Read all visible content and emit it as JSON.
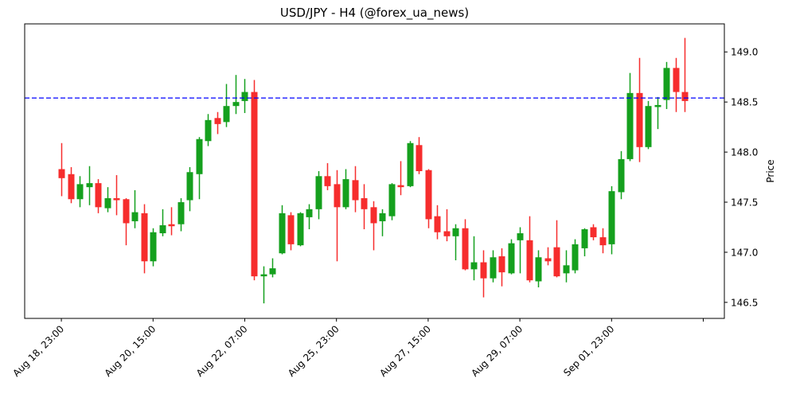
{
  "colors": {
    "up": "#15a01e",
    "down": "#f62d2d",
    "hline": "#0000ff",
    "axis": "#000000",
    "text": "#000000",
    "background": "#ffffff"
  },
  "chart_data": {
    "type": "candlestick",
    "title": "USD/JPY - H4 (@forex_ua_news)",
    "ylabel": "Price",
    "xlabel": "",
    "grid": false,
    "legend": null,
    "ylim": [
      146.34,
      149.28
    ],
    "y_ticks": [
      146.5,
      147.0,
      147.5,
      148.0,
      148.5,
      149.0
    ],
    "x_index_range": [
      -4,
      72.3
    ],
    "x_tick_indices": [
      0,
      10,
      20,
      30,
      40,
      50,
      60,
      70
    ],
    "x_tick_labels": [
      "Aug 18, 23:00",
      "Aug 20, 15:00",
      "Aug 22, 07:00",
      "Aug 25, 23:00",
      "Aug 27, 15:00",
      "Aug 29, 07:00",
      "Sep 01, 23:00",
      ""
    ],
    "hline": {
      "value": 148.54,
      "style": "dashed",
      "color": "#0000ff"
    },
    "ohlc": [
      [
        147.83,
        148.09,
        147.56,
        147.74
      ],
      [
        147.78,
        147.85,
        147.49,
        147.53
      ],
      [
        147.53,
        147.76,
        147.45,
        147.68
      ],
      [
        147.65,
        147.86,
        147.47,
        147.69
      ],
      [
        147.69,
        147.73,
        147.39,
        147.45
      ],
      [
        147.44,
        147.65,
        147.4,
        147.54
      ],
      [
        147.54,
        147.77,
        147.37,
        147.52
      ],
      [
        147.53,
        147.54,
        147.07,
        147.29
      ],
      [
        147.31,
        147.62,
        147.24,
        147.4
      ],
      [
        147.39,
        147.48,
        146.79,
        146.91
      ],
      [
        146.91,
        147.24,
        146.86,
        147.2
      ],
      [
        147.19,
        147.43,
        147.16,
        147.27
      ],
      [
        147.28,
        147.45,
        147.17,
        147.26
      ],
      [
        147.28,
        147.54,
        147.21,
        147.5
      ],
      [
        147.52,
        147.85,
        147.41,
        147.8
      ],
      [
        147.78,
        148.15,
        147.53,
        148.13
      ],
      [
        148.11,
        148.38,
        148.06,
        148.32
      ],
      [
        148.34,
        148.4,
        148.18,
        148.28
      ],
      [
        148.3,
        148.68,
        148.25,
        148.46
      ],
      [
        148.46,
        148.77,
        148.38,
        148.5
      ],
      [
        148.51,
        148.73,
        148.39,
        148.6
      ],
      [
        148.6,
        148.72,
        146.72,
        146.76
      ],
      [
        146.76,
        146.86,
        146.49,
        146.78
      ],
      [
        146.78,
        146.94,
        146.75,
        146.84
      ],
      [
        146.99,
        147.47,
        146.98,
        147.39
      ],
      [
        147.37,
        147.4,
        147.02,
        147.08
      ],
      [
        147.07,
        147.4,
        147.06,
        147.39
      ],
      [
        147.35,
        147.48,
        147.23,
        147.43
      ],
      [
        147.43,
        147.81,
        147.33,
        147.76
      ],
      [
        147.76,
        147.89,
        147.62,
        147.66
      ],
      [
        147.68,
        147.82,
        146.91,
        147.45
      ],
      [
        147.45,
        147.83,
        147.43,
        147.73
      ],
      [
        147.72,
        147.86,
        147.4,
        147.52
      ],
      [
        147.54,
        147.68,
        147.23,
        147.43
      ],
      [
        147.45,
        147.51,
        147.02,
        147.29
      ],
      [
        147.31,
        147.43,
        147.16,
        147.39
      ],
      [
        147.36,
        147.69,
        147.32,
        147.68
      ],
      [
        147.67,
        147.91,
        147.57,
        147.65
      ],
      [
        147.66,
        148.11,
        147.65,
        148.09
      ],
      [
        148.07,
        148.15,
        147.78,
        147.81
      ],
      [
        147.82,
        147.83,
        147.24,
        147.33
      ],
      [
        147.36,
        147.47,
        147.13,
        147.2
      ],
      [
        147.21,
        147.43,
        147.11,
        147.16
      ],
      [
        147.16,
        147.28,
        146.92,
        147.24
      ],
      [
        147.24,
        147.33,
        146.82,
        146.83
      ],
      [
        146.83,
        147.16,
        146.72,
        146.9
      ],
      [
        146.9,
        147.02,
        146.55,
        146.74
      ],
      [
        146.74,
        147.02,
        146.7,
        146.95
      ],
      [
        146.96,
        147.04,
        146.66,
        146.8
      ],
      [
        146.79,
        147.13,
        146.78,
        147.09
      ],
      [
        147.12,
        147.25,
        146.79,
        147.19
      ],
      [
        147.12,
        147.36,
        146.7,
        146.72
      ],
      [
        146.71,
        147.02,
        146.65,
        146.95
      ],
      [
        146.94,
        147.05,
        146.87,
        146.91
      ],
      [
        147.05,
        147.32,
        146.75,
        146.76
      ],
      [
        146.79,
        147.02,
        146.7,
        146.87
      ],
      [
        146.82,
        147.13,
        146.79,
        147.08
      ],
      [
        147.04,
        147.24,
        146.96,
        147.23
      ],
      [
        147.25,
        147.28,
        147.12,
        147.15
      ],
      [
        147.15,
        147.24,
        146.99,
        147.07
      ],
      [
        147.08,
        147.66,
        146.98,
        147.61
      ],
      [
        147.6,
        148.01,
        147.53,
        147.93
      ],
      [
        147.93,
        148.79,
        147.91,
        148.59
      ],
      [
        148.59,
        148.94,
        147.9,
        148.05
      ],
      [
        148.05,
        148.51,
        148.03,
        148.46
      ],
      [
        148.45,
        148.55,
        148.23,
        148.47
      ],
      [
        148.52,
        148.9,
        148.43,
        148.84
      ],
      [
        148.84,
        148.94,
        148.4,
        148.6
      ],
      [
        148.6,
        149.14,
        148.4,
        148.51
      ]
    ]
  }
}
